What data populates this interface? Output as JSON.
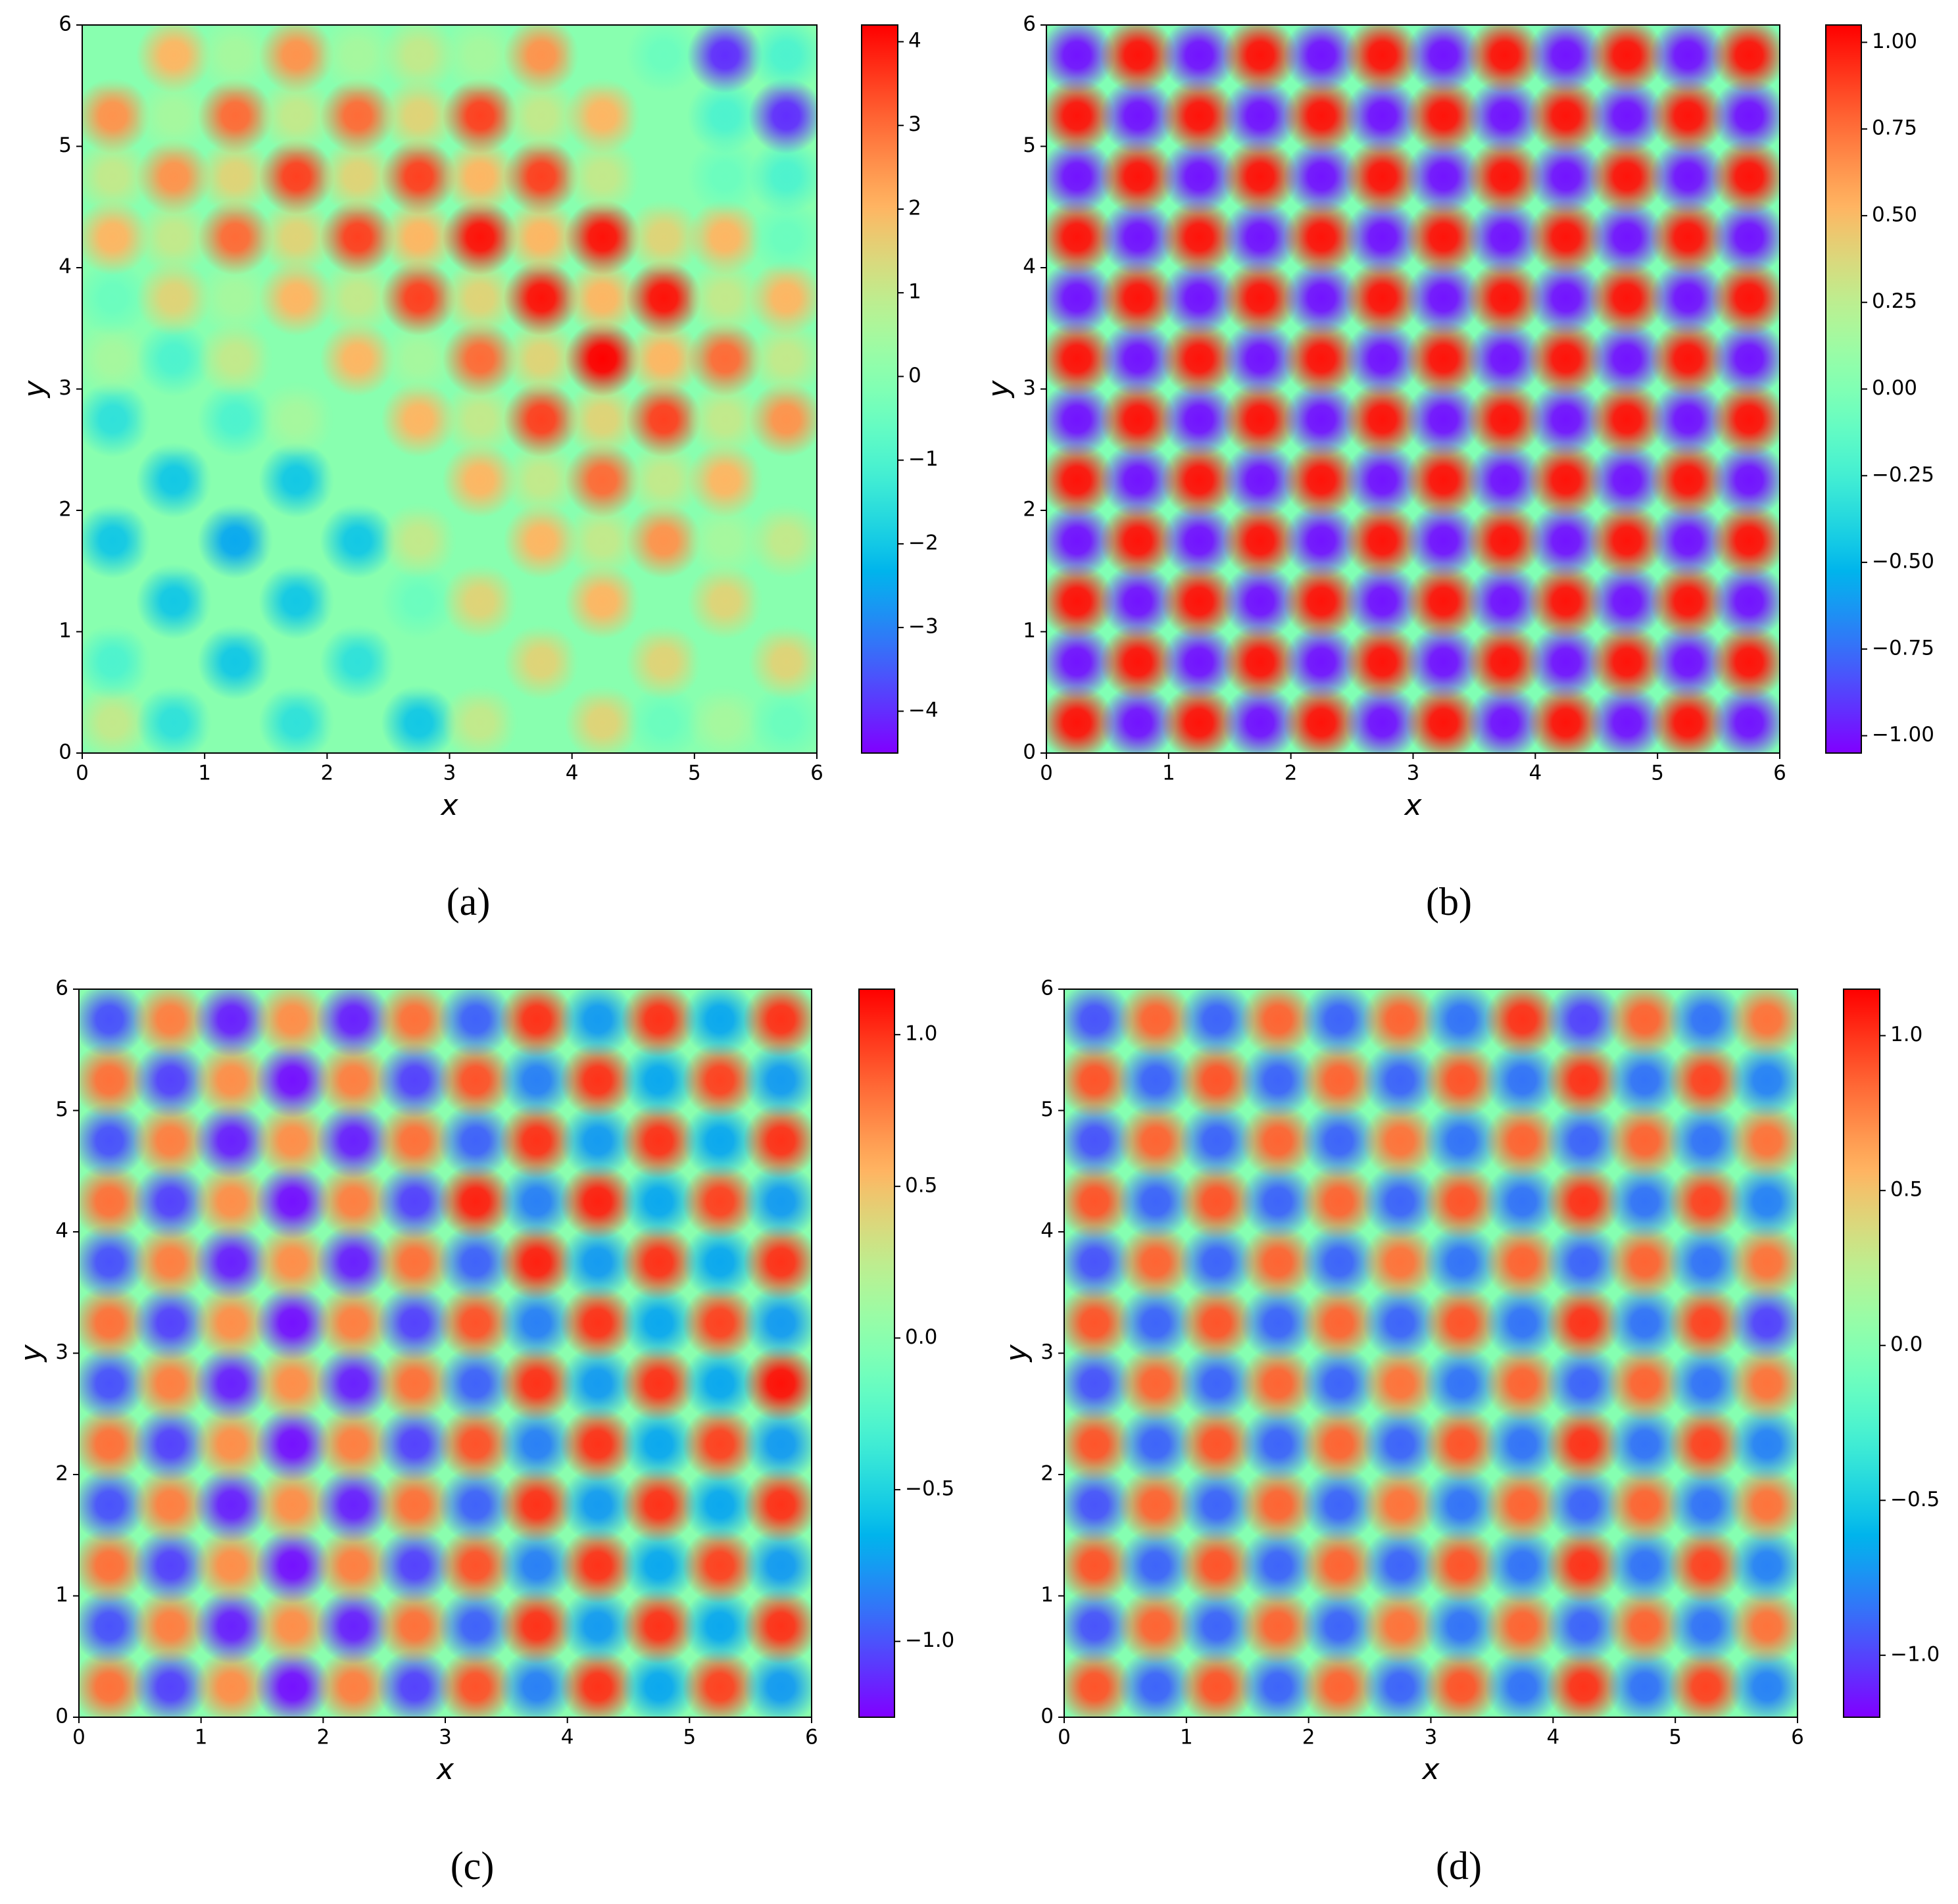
{
  "chart_data": [
    {
      "type": "heatmap",
      "caption": "(a)",
      "xlabel": "x",
      "ylabel": "y",
      "colormap": "rainbow",
      "xlim": [
        0,
        6
      ],
      "ylim": [
        0,
        6
      ],
      "xticks": [
        0,
        1,
        2,
        3,
        4,
        5,
        6
      ],
      "yticks": [
        0,
        1,
        2,
        3,
        4,
        5,
        6
      ],
      "clim": [
        -4.5,
        4.2
      ],
      "cticks": [
        {
          "value": -4,
          "label": "−4"
        },
        {
          "value": -3,
          "label": "−3"
        },
        {
          "value": -2,
          "label": "−2"
        },
        {
          "value": -1,
          "label": "−1"
        },
        0,
        1,
        2,
        3,
        4
      ],
      "z": [
        [
          1,
          -1.5,
          0,
          -1.5,
          0,
          -2,
          1,
          0,
          1.5,
          -0.5,
          0.5,
          -0.5
        ],
        [
          -1,
          0,
          -2,
          0,
          -1.5,
          0,
          0,
          1.5,
          0,
          1.5,
          0,
          1.5
        ],
        [
          0,
          -2,
          0,
          -2,
          0,
          -0.5,
          1.5,
          0,
          2,
          0,
          1.5,
          0
        ],
        [
          -2,
          0,
          -2.5,
          0,
          -2,
          1,
          0,
          2,
          1,
          2.5,
          0.5,
          1
        ],
        [
          0,
          -2,
          0,
          -2,
          0,
          0,
          2,
          1,
          3,
          1,
          2,
          0
        ],
        [
          -1.5,
          0,
          -1,
          0.5,
          0,
          2,
          1,
          3.5,
          1.5,
          3.5,
          1,
          2.5
        ],
        [
          0.5,
          -1,
          1,
          0,
          2,
          0.5,
          3,
          1.5,
          4.2,
          2,
          3,
          1
        ],
        [
          -0.5,
          1.5,
          0.5,
          2,
          1,
          3.5,
          1.5,
          4,
          2,
          4,
          1,
          2
        ],
        [
          2,
          1,
          3,
          1.5,
          3.5,
          2,
          4,
          2,
          4,
          1.5,
          2,
          -0.5
        ],
        [
          1,
          2.5,
          1.5,
          3.5,
          1.5,
          3.5,
          2,
          3.5,
          1,
          0,
          -0.5,
          -1
        ],
        [
          2.5,
          0.5,
          3,
          1,
          3,
          1.5,
          3.5,
          1,
          2,
          0,
          -1,
          -4
        ],
        [
          0,
          2,
          0.5,
          2.5,
          0.5,
          1,
          0.5,
          2.5,
          0,
          -0.5,
          -4,
          -1
        ]
      ]
    },
    {
      "type": "heatmap",
      "caption": "(b)",
      "xlabel": "x",
      "ylabel": "y",
      "colormap": "rainbow",
      "xlim": [
        0,
        6
      ],
      "ylim": [
        0,
        6
      ],
      "xticks": [
        0,
        1,
        2,
        3,
        4,
        5,
        6
      ],
      "yticks": [
        0,
        1,
        2,
        3,
        4,
        5,
        6
      ],
      "clim": [
        -1.05,
        1.05
      ],
      "cticks": [
        {
          "value": -1,
          "label": "−1.00"
        },
        {
          "value": -0.75,
          "label": "−0.75"
        },
        {
          "value": -0.5,
          "label": "−0.50"
        },
        {
          "value": -0.25,
          "label": "−0.25"
        },
        {
          "value": 0,
          "label": "0.00"
        },
        {
          "value": 0.25,
          "label": "0.25"
        },
        {
          "value": 0.5,
          "label": "0.50"
        },
        {
          "value": 0.75,
          "label": "0.75"
        },
        {
          "value": 1,
          "label": "1.00"
        }
      ],
      "z": [
        [
          1,
          -1,
          1,
          -1,
          1,
          -1,
          1,
          -1,
          1,
          -1,
          1,
          -1
        ],
        [
          -1,
          1,
          -1,
          1,
          -1,
          1,
          -1,
          1,
          -1,
          1,
          -1,
          1
        ],
        [
          1,
          -1,
          1,
          -1,
          1,
          -1,
          1,
          -1,
          1,
          -1,
          1,
          -1
        ],
        [
          -1,
          1,
          -1,
          1,
          -1,
          1,
          -1,
          1,
          -1,
          1,
          -1,
          1
        ],
        [
          1,
          -1,
          1,
          -1,
          1,
          -1,
          1,
          -1,
          1,
          -1,
          1,
          -1
        ],
        [
          -1,
          1,
          -1,
          1,
          -1,
          1,
          -1,
          1,
          -1,
          1,
          -1,
          1
        ],
        [
          1,
          -1,
          1,
          -1,
          1,
          -1,
          1,
          -1,
          1,
          -1,
          1,
          -1
        ],
        [
          -1,
          1,
          -1,
          1,
          -1,
          1,
          -1,
          1,
          -1,
          1,
          -1,
          1
        ],
        [
          1,
          -1,
          1,
          -1,
          1,
          -1,
          1,
          -1,
          1,
          -1,
          1,
          -1
        ],
        [
          -1,
          1,
          -1,
          1,
          -1,
          1,
          -1,
          1,
          -1,
          1,
          -1,
          1
        ],
        [
          1,
          -1,
          1,
          -1,
          1,
          -1,
          1,
          -1,
          1,
          -1,
          1,
          -1
        ],
        [
          -1,
          1,
          -1,
          1,
          -1,
          1,
          -1,
          1,
          -1,
          1,
          -1,
          1
        ]
      ]
    },
    {
      "type": "heatmap",
      "caption": "(c)",
      "xlabel": "x",
      "ylabel": "y",
      "colormap": "rainbow",
      "xlim": [
        0,
        6
      ],
      "ylim": [
        0,
        6
      ],
      "xticks": [
        0,
        1,
        2,
        3,
        4,
        5,
        6
      ],
      "yticks": [
        0,
        1,
        2,
        3,
        4,
        5,
        6
      ],
      "clim": [
        -1.25,
        1.15
      ],
      "cticks": [
        {
          "value": -1,
          "label": "−1.0"
        },
        {
          "value": -0.5,
          "label": "−0.5"
        },
        {
          "value": 0,
          "label": "0.0"
        },
        {
          "value": 0.5,
          "label": "0.5"
        },
        {
          "value": 1,
          "label": "1.0"
        }
      ],
      "z": [
        [
          0.8,
          -1.05,
          0.7,
          -1.2,
          0.75,
          -1.05,
          0.9,
          -0.85,
          1.0,
          -0.7,
          0.95,
          -0.75
        ],
        [
          -1.0,
          0.75,
          -1.15,
          0.7,
          -1.15,
          0.8,
          -0.95,
          1.0,
          -0.75,
          1.0,
          -0.7,
          1.0
        ],
        [
          0.8,
          -1.05,
          0.7,
          -1.2,
          0.75,
          -1.05,
          0.9,
          -0.85,
          1.0,
          -0.7,
          0.95,
          -0.75
        ],
        [
          -1.0,
          0.75,
          -1.15,
          0.7,
          -1.15,
          0.8,
          -0.95,
          1.0,
          -0.75,
          1.0,
          -0.7,
          1.0
        ],
        [
          0.8,
          -1.05,
          0.7,
          -1.2,
          0.75,
          -1.05,
          0.9,
          -0.85,
          1.0,
          -0.7,
          0.95,
          -0.75
        ],
        [
          -1.0,
          0.75,
          -1.15,
          0.7,
          -1.15,
          0.8,
          -0.95,
          1.0,
          -0.75,
          1.0,
          -0.7,
          1.1
        ],
        [
          0.8,
          -1.05,
          0.7,
          -1.2,
          0.75,
          -1.05,
          0.9,
          -0.85,
          1.0,
          -0.7,
          0.95,
          -0.75
        ],
        [
          -1.0,
          0.75,
          -1.15,
          0.7,
          -1.15,
          0.8,
          -0.95,
          1.05,
          -0.75,
          1.0,
          -0.7,
          1.0
        ],
        [
          0.8,
          -1.05,
          0.7,
          -1.2,
          0.75,
          -1.05,
          1.05,
          -0.85,
          1.05,
          -0.7,
          0.95,
          -0.75
        ],
        [
          -1.0,
          0.75,
          -1.15,
          0.7,
          -1.15,
          0.8,
          -0.95,
          1.0,
          -0.75,
          1.0,
          -0.7,
          1.0
        ],
        [
          0.8,
          -1.05,
          0.7,
          -1.2,
          0.75,
          -1.05,
          0.9,
          -0.85,
          1.0,
          -0.7,
          0.95,
          -0.75
        ],
        [
          -1.0,
          0.75,
          -1.15,
          0.7,
          -1.15,
          0.8,
          -0.95,
          1.0,
          -0.75,
          1.0,
          -0.7,
          1.0
        ]
      ]
    },
    {
      "type": "heatmap",
      "caption": "(d)",
      "xlabel": "x",
      "ylabel": "y",
      "colormap": "rainbow",
      "xlim": [
        0,
        6
      ],
      "ylim": [
        0,
        6
      ],
      "xticks": [
        0,
        1,
        2,
        3,
        4,
        5,
        6
      ],
      "yticks": [
        0,
        1,
        2,
        3,
        4,
        5,
        6
      ],
      "clim": [
        -1.2,
        1.15
      ],
      "cticks": [
        {
          "value": -1,
          "label": "−1.0"
        },
        {
          "value": -0.5,
          "label": "−0.5"
        },
        {
          "value": 0,
          "label": "0.0"
        },
        {
          "value": 0.5,
          "label": "0.5"
        },
        {
          "value": 1,
          "label": "1.0"
        }
      ],
      "z": [
        [
          0.9,
          -0.9,
          0.9,
          -0.9,
          0.85,
          -0.9,
          0.9,
          -0.85,
          1.0,
          -0.85,
          0.95,
          -0.8
        ],
        [
          -0.95,
          0.85,
          -0.9,
          0.85,
          -0.9,
          0.8,
          -0.85,
          0.85,
          -0.9,
          0.85,
          -0.85,
          0.8
        ],
        [
          0.9,
          -0.9,
          0.9,
          -0.9,
          0.85,
          -0.9,
          0.9,
          -0.85,
          1.0,
          -0.85,
          0.95,
          -0.8
        ],
        [
          -0.95,
          0.85,
          -0.9,
          0.85,
          -0.9,
          0.8,
          -0.85,
          0.85,
          -0.9,
          0.85,
          -0.85,
          0.8
        ],
        [
          0.9,
          -0.9,
          0.9,
          -0.9,
          0.85,
          -0.9,
          0.9,
          -0.85,
          1.0,
          -0.85,
          0.95,
          -0.8
        ],
        [
          -0.95,
          0.85,
          -0.9,
          0.85,
          -0.9,
          0.8,
          -0.85,
          0.85,
          -0.9,
          0.85,
          -0.85,
          0.8
        ],
        [
          0.9,
          -0.9,
          0.9,
          -0.9,
          0.85,
          -0.9,
          0.9,
          -0.85,
          1.0,
          -0.85,
          0.95,
          -1.0
        ],
        [
          -0.95,
          0.85,
          -0.9,
          0.85,
          -0.9,
          0.8,
          -0.85,
          0.85,
          -0.9,
          0.85,
          -0.85,
          0.8
        ],
        [
          0.9,
          -0.9,
          0.9,
          -0.9,
          0.85,
          -0.9,
          0.9,
          -0.85,
          1.0,
          -0.85,
          0.95,
          -0.8
        ],
        [
          -0.95,
          0.85,
          -0.9,
          0.85,
          -0.9,
          0.8,
          -0.85,
          0.85,
          -0.9,
          0.85,
          -0.85,
          0.8
        ],
        [
          0.9,
          -0.9,
          0.9,
          -0.9,
          0.85,
          -0.9,
          0.9,
          -0.85,
          1.0,
          -0.85,
          0.95,
          -0.8
        ],
        [
          -0.95,
          0.85,
          -0.9,
          0.85,
          -0.9,
          0.85,
          -0.85,
          1.0,
          -1.0,
          0.85,
          -0.85,
          0.8
        ]
      ]
    }
  ]
}
